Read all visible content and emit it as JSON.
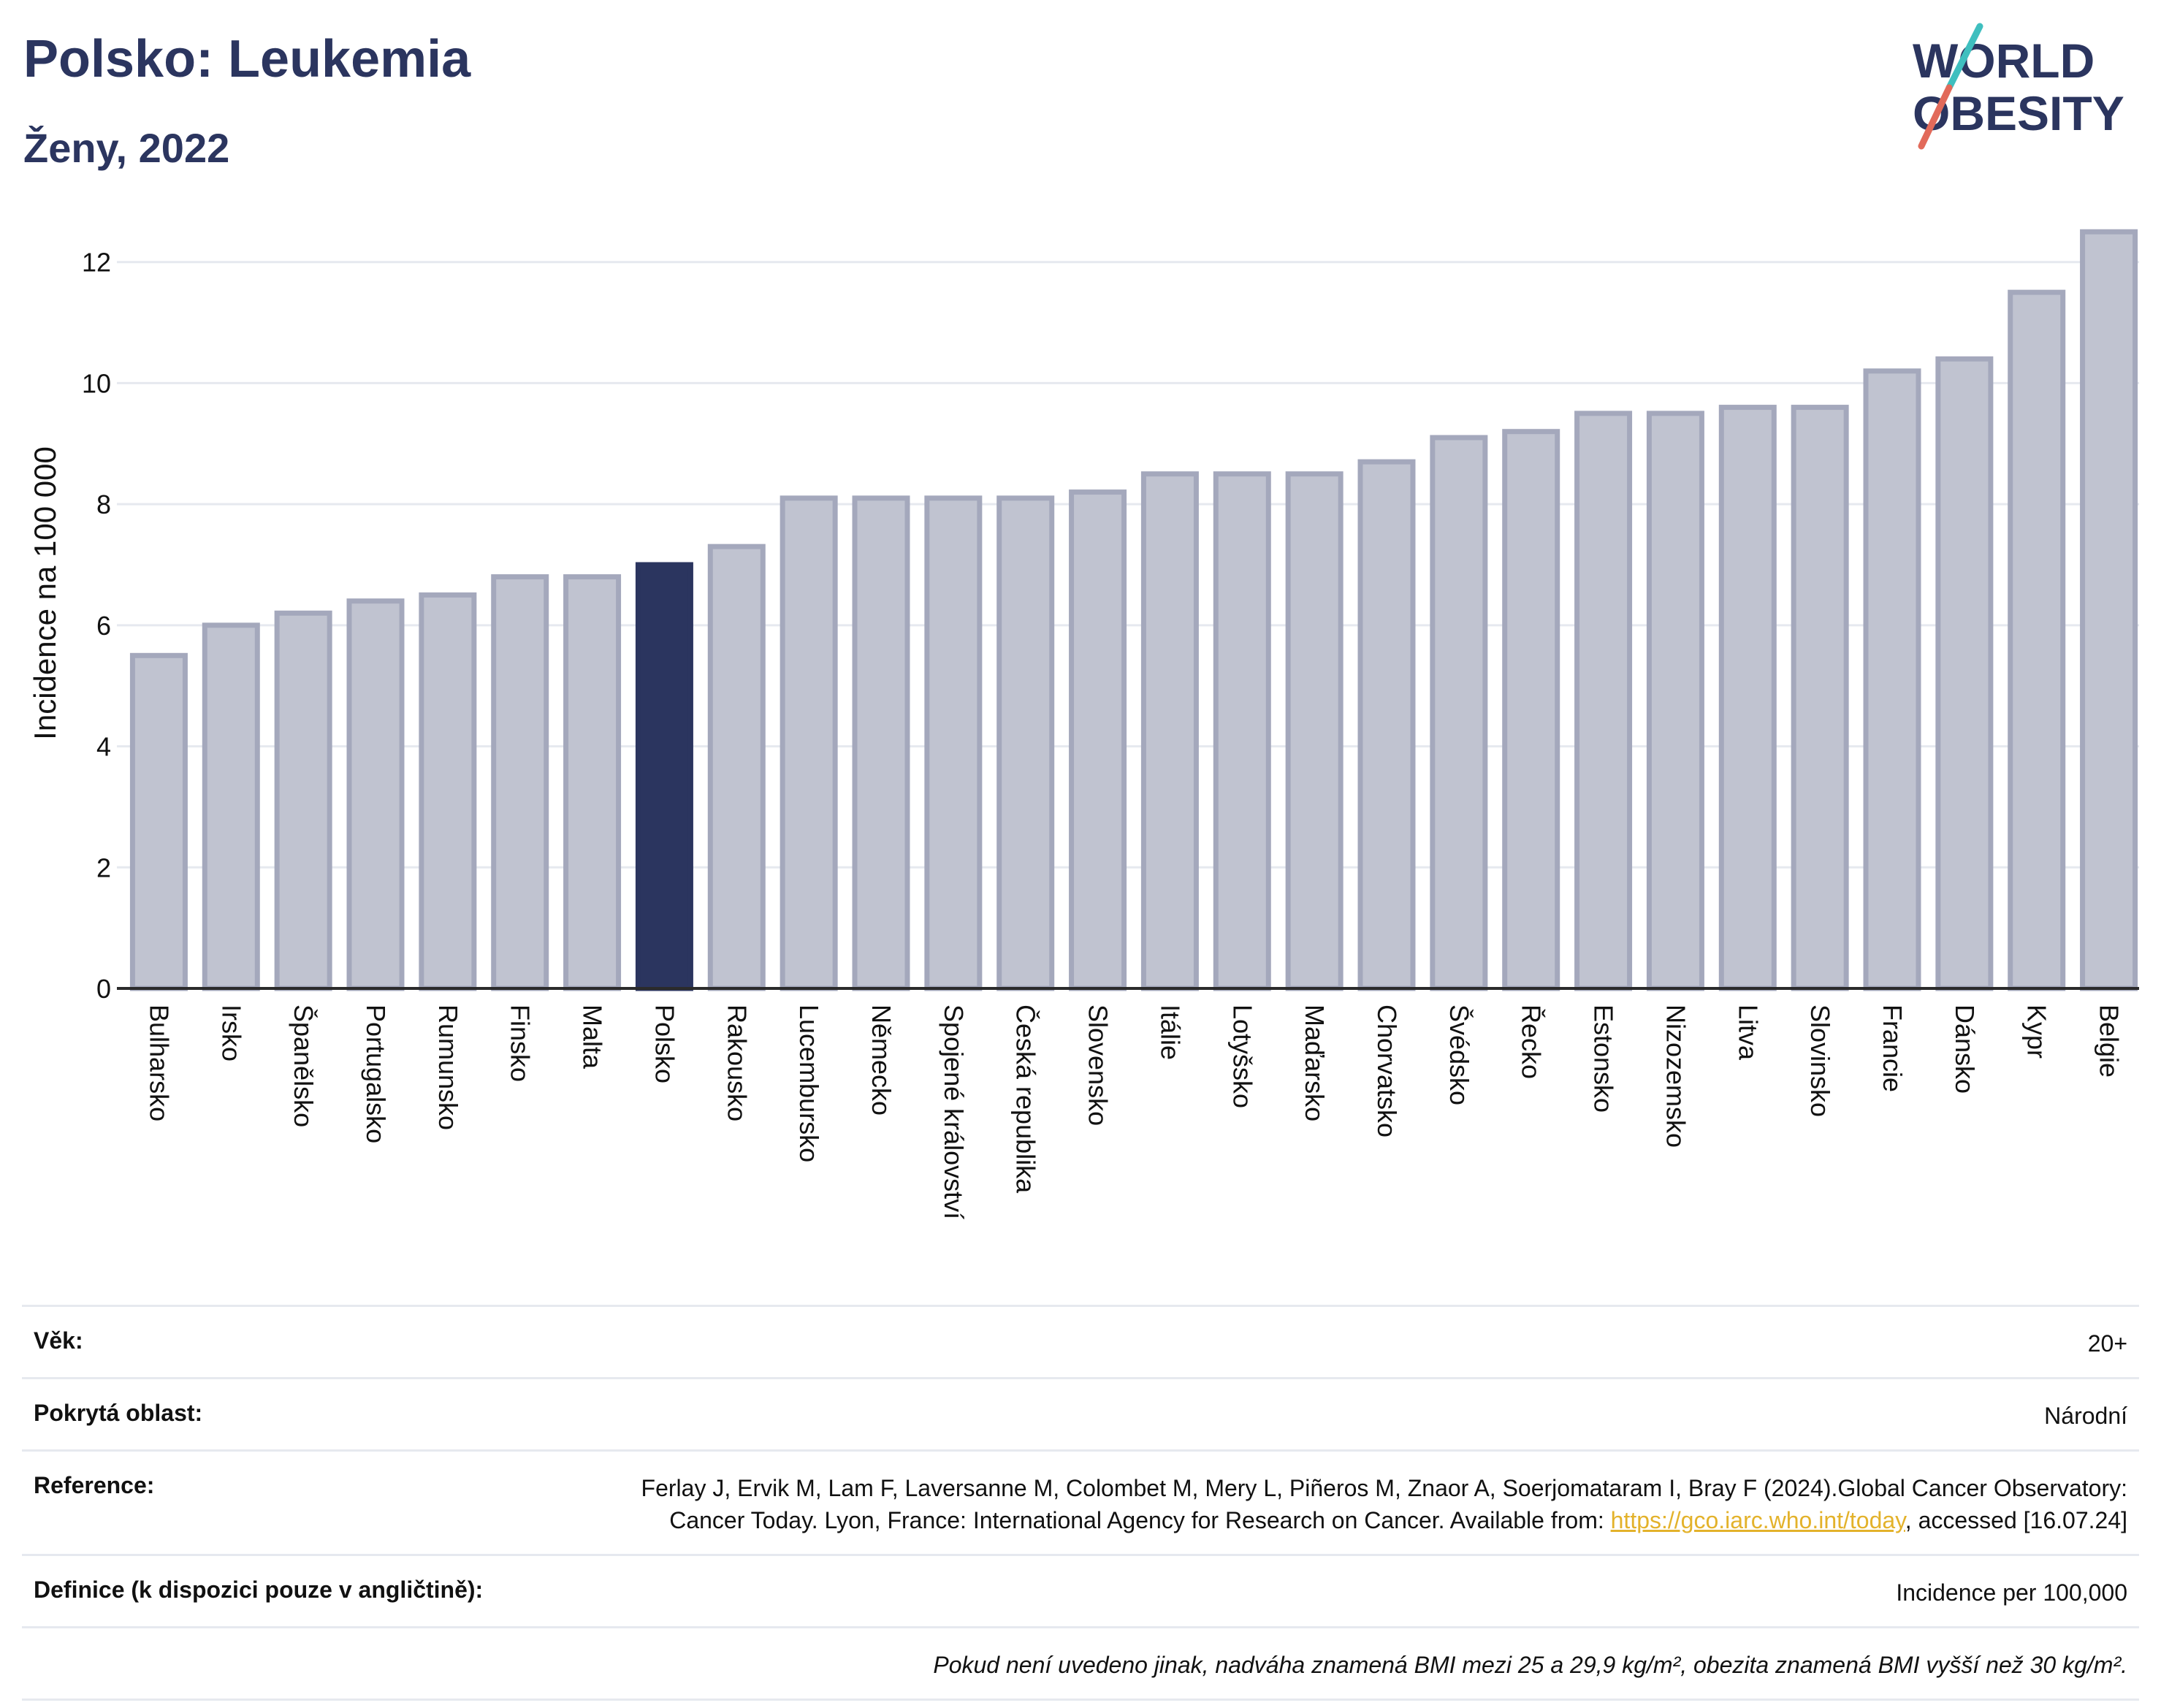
{
  "header": {
    "title": "Polsko: Leukemia",
    "subtitle": "Ženy, 2022",
    "logo_line1": "WORLD",
    "logo_line2": "OBESITY"
  },
  "colors": {
    "bar_fill": "#c0c3d0",
    "bar_stroke": "#a4a8bc",
    "highlight": "#2b355f",
    "grid": "#e6e9ef",
    "accent_teal": "#3fbfbf",
    "accent_coral": "#e26a5a"
  },
  "chart_data": {
    "type": "bar",
    "title": "Polsko: Leukemia",
    "subtitle": "Ženy, 2022",
    "xlabel": "",
    "ylabel": "Incidence na 100 000",
    "ylim": [
      0,
      12.6
    ],
    "yticks": [
      0,
      2,
      4,
      6,
      8,
      10,
      12
    ],
    "grid": true,
    "highlight_category": "Polsko",
    "categories": [
      "Bulharsko",
      "Irsko",
      "Španělsko",
      "Portugalsko",
      "Rumunsko",
      "Finsko",
      "Malta",
      "Polsko",
      "Rakousko",
      "Lucembursko",
      "Německo",
      "Spojené království",
      "Česká republika",
      "Slovensko",
      "Itálie",
      "Lotyšsko",
      "Maďarsko",
      "Chorvatsko",
      "Švédsko",
      "Řecko",
      "Estonsko",
      "Nizozemsko",
      "Litva",
      "Slovinsko",
      "Francie",
      "Dánsko",
      "Kypr",
      "Belgie"
    ],
    "values": [
      5.5,
      6.0,
      6.2,
      6.4,
      6.5,
      6.8,
      6.8,
      7.0,
      7.3,
      8.1,
      8.1,
      8.1,
      8.1,
      8.2,
      8.5,
      8.5,
      8.5,
      8.7,
      9.1,
      9.2,
      9.5,
      9.5,
      9.6,
      9.6,
      10.2,
      10.4,
      11.5,
      12.5
    ]
  },
  "info": {
    "age_label": "Věk:",
    "age_value": "20+",
    "area_label": "Pokrytá oblast:",
    "area_value": "Národní",
    "reference_label": "Reference:",
    "reference_text": "Ferlay J, Ervik M, Lam F, Laversanne M, Colombet M, Mery L, Piñeros M, Znaor A, Soerjomataram I, Bray F (2024).Global Cancer Observatory: Cancer Today. Lyon, France: International Agency for Research on Cancer. Available from: ",
    "reference_link": "https://gco.iarc.who.int/today",
    "reference_suffix": ", accessed [16.07.24]",
    "definition_label": "Definice (k dispozici pouze v angličtině):",
    "definition_value": "Incidence per 100,000",
    "note": "Pokud není uvedeno jinak, nadváha znamená BMI mezi 25 a 29,9 kg/m², obezita znamená BMI vyšší než 30 kg/m²."
  }
}
